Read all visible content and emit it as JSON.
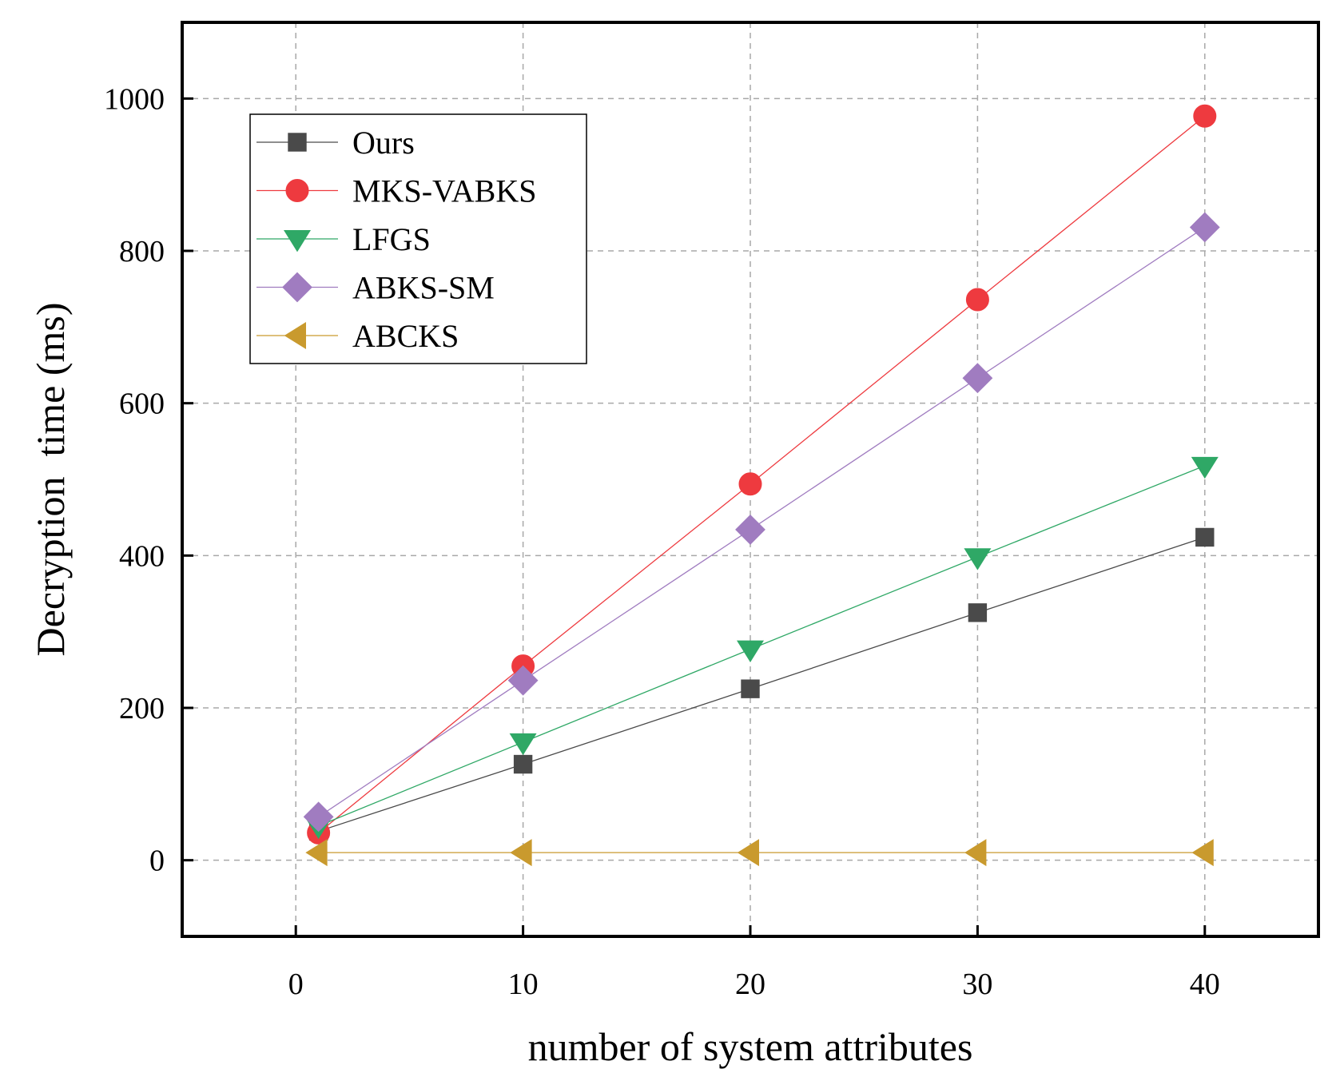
{
  "chart_data": {
    "type": "line",
    "title": "",
    "xlabel": "number of system attributes",
    "ylabel": "Decryption  time (ms)",
    "xlim": [
      -5,
      45
    ],
    "ylim": [
      -100,
      1100
    ],
    "xticks": [
      0,
      10,
      20,
      30,
      40
    ],
    "yticks": [
      0,
      200,
      400,
      600,
      800,
      1000
    ],
    "grid": true,
    "legend_position": "top-left",
    "x": [
      1,
      10,
      20,
      30,
      40
    ],
    "series": [
      {
        "name": "Ours",
        "marker": "square",
        "color": "#4a4a4a",
        "values": [
          38,
          126,
          225,
          325,
          424
        ]
      },
      {
        "name": "MKS-VABKS",
        "marker": "circle",
        "color": "#ee3a3f",
        "values": [
          36,
          255,
          494,
          736,
          977
        ]
      },
      {
        "name": " LFGS",
        "marker": "triangle-down",
        "color": "#2fa866",
        "values": [
          45,
          155,
          277,
          398,
          518
        ]
      },
      {
        "name": " ABKS-SM",
        "marker": "diamond",
        "color": "#a07cc0",
        "values": [
          57,
          236,
          434,
          633,
          831
        ]
      },
      {
        "name": "ABCKS",
        "marker": "triangle-left",
        "color": "#c99a2e",
        "values": [
          10,
          10,
          10,
          10,
          10
        ]
      }
    ]
  }
}
